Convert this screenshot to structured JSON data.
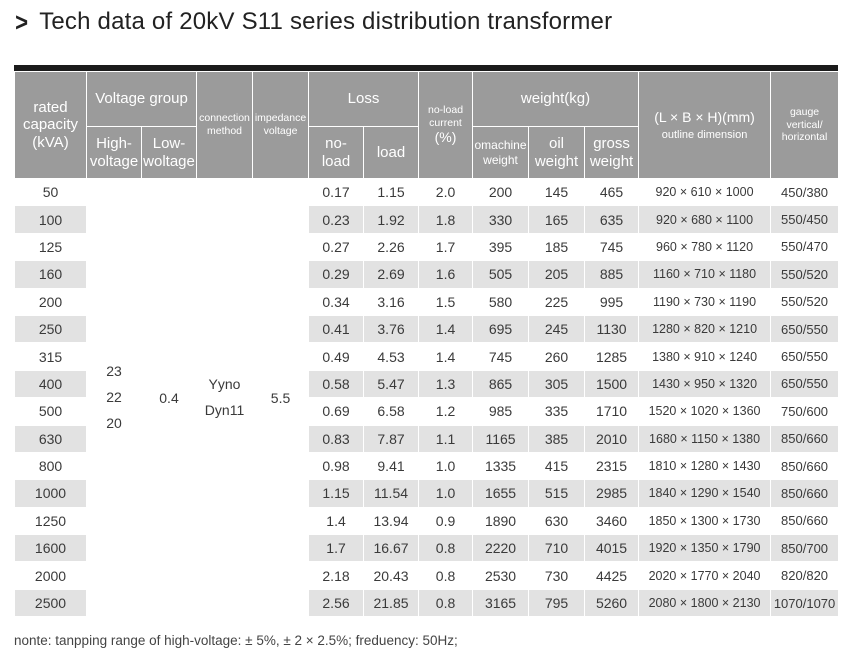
{
  "title": "Tech data of 20kV S11 series distribution transformer",
  "header": {
    "rated_capacity": "rated capacity (kVA)",
    "voltage_group": "Voltage group",
    "high_voltage": "High- voltage",
    "low_voltage": "Low- woltage",
    "connection_method": "connection method",
    "impedance_voltage": "impedance voltage",
    "loss": "Loss",
    "no_load": "no- load",
    "load": "load",
    "no_load_current": "no-load current",
    "no_load_current_unit": "(%)",
    "weight": "weight(kg)",
    "machine_weight": "omachine weight",
    "oil_weight": "oil weight",
    "gross_weight": "gross weight",
    "dimension_formula": "(L × B × H)(mm)",
    "dimension_label": "outline dimension",
    "gauge": "gauge vertical/ horizontal"
  },
  "merged": {
    "high_voltage_values": [
      "23",
      "22",
      "20"
    ],
    "low_voltage": "0.4",
    "connection_values": [
      "Yyno",
      "Dyn11"
    ],
    "impedance": "5.5"
  },
  "rows": [
    {
      "capacity": "50",
      "no_load": "0.17",
      "load": "1.15",
      "current": "2.0",
      "machine": "200",
      "oil": "145",
      "gross": "465",
      "dim": "920 × 610 × 1000",
      "gauge": "450/380"
    },
    {
      "capacity": "100",
      "no_load": "0.23",
      "load": "1.92",
      "current": "1.8",
      "machine": "330",
      "oil": "165",
      "gross": "635",
      "dim": "920 × 680 × 1100",
      "gauge": "550/450"
    },
    {
      "capacity": "125",
      "no_load": "0.27",
      "load": "2.26",
      "current": "1.7",
      "machine": "395",
      "oil": "185",
      "gross": "745",
      "dim": "960 × 780 × 1120",
      "gauge": "550/470"
    },
    {
      "capacity": "160",
      "no_load": "0.29",
      "load": "2.69",
      "current": "1.6",
      "machine": "505",
      "oil": "205",
      "gross": "885",
      "dim": "1160 × 710 × 1180",
      "gauge": "550/520"
    },
    {
      "capacity": "200",
      "no_load": "0.34",
      "load": "3.16",
      "current": "1.5",
      "machine": "580",
      "oil": "225",
      "gross": "995",
      "dim": "1190 × 730 × 1190",
      "gauge": "550/520"
    },
    {
      "capacity": "250",
      "no_load": "0.41",
      "load": "3.76",
      "current": "1.4",
      "machine": "695",
      "oil": "245",
      "gross": "1130",
      "dim": "1280 × 820 × 1210",
      "gauge": "650/550"
    },
    {
      "capacity": "315",
      "no_load": "0.49",
      "load": "4.53",
      "current": "1.4",
      "machine": "745",
      "oil": "260",
      "gross": "1285",
      "dim": "1380 × 910 × 1240",
      "gauge": "650/550"
    },
    {
      "capacity": "400",
      "no_load": "0.58",
      "load": "5.47",
      "current": "1.3",
      "machine": "865",
      "oil": "305",
      "gross": "1500",
      "dim": "1430 × 950 × 1320",
      "gauge": "650/550"
    },
    {
      "capacity": "500",
      "no_load": "0.69",
      "load": "6.58",
      "current": "1.2",
      "machine": "985",
      "oil": "335",
      "gross": "1710",
      "dim": "1520 × 1020 × 1360",
      "gauge": "750/600"
    },
    {
      "capacity": "630",
      "no_load": "0.83",
      "load": "7.87",
      "current": "1.1",
      "machine": "1165",
      "oil": "385",
      "gross": "2010",
      "dim": "1680 × 1150 × 1380",
      "gauge": "850/660"
    },
    {
      "capacity": "800",
      "no_load": "0.98",
      "load": "9.41",
      "current": "1.0",
      "machine": "1335",
      "oil": "415",
      "gross": "2315",
      "dim": "1810 × 1280 × 1430",
      "gauge": "850/660"
    },
    {
      "capacity": "1000",
      "no_load": "1.15",
      "load": "11.54",
      "current": "1.0",
      "machine": "1655",
      "oil": "515",
      "gross": "2985",
      "dim": "1840 × 1290 × 1540",
      "gauge": "850/660"
    },
    {
      "capacity": "1250",
      "no_load": "1.4",
      "load": "13.94",
      "current": "0.9",
      "machine": "1890",
      "oil": "630",
      "gross": "3460",
      "dim": "1850 × 1300 × 1730",
      "gauge": "850/660"
    },
    {
      "capacity": "1600",
      "no_load": "1.7",
      "load": "16.67",
      "current": "0.8",
      "machine": "2220",
      "oil": "710",
      "gross": "4015",
      "dim": "1920 × 1350 × 1790",
      "gauge": "850/700"
    },
    {
      "capacity": "2000",
      "no_load": "2.18",
      "load": "20.43",
      "current": "0.8",
      "machine": "2530",
      "oil": "730",
      "gross": "4425",
      "dim": "2020 × 1770 × 2040",
      "gauge": "820/820"
    },
    {
      "capacity": "2500",
      "no_load": "2.56",
      "load": "21.85",
      "current": "0.8",
      "machine": "3165",
      "oil": "795",
      "gross": "5260",
      "dim": "2080 × 1800 × 2130",
      "gauge": "1070/1070"
    }
  ],
  "note": "nonte: tanpping range of high-voltage: ± 5%,  ± 2 × 2.5%; freduency: 50Hz;",
  "colors": {
    "header_bg": "#9b9b9b",
    "stripe": "#e2e2e2",
    "top_bar": "#1b1b1b"
  }
}
